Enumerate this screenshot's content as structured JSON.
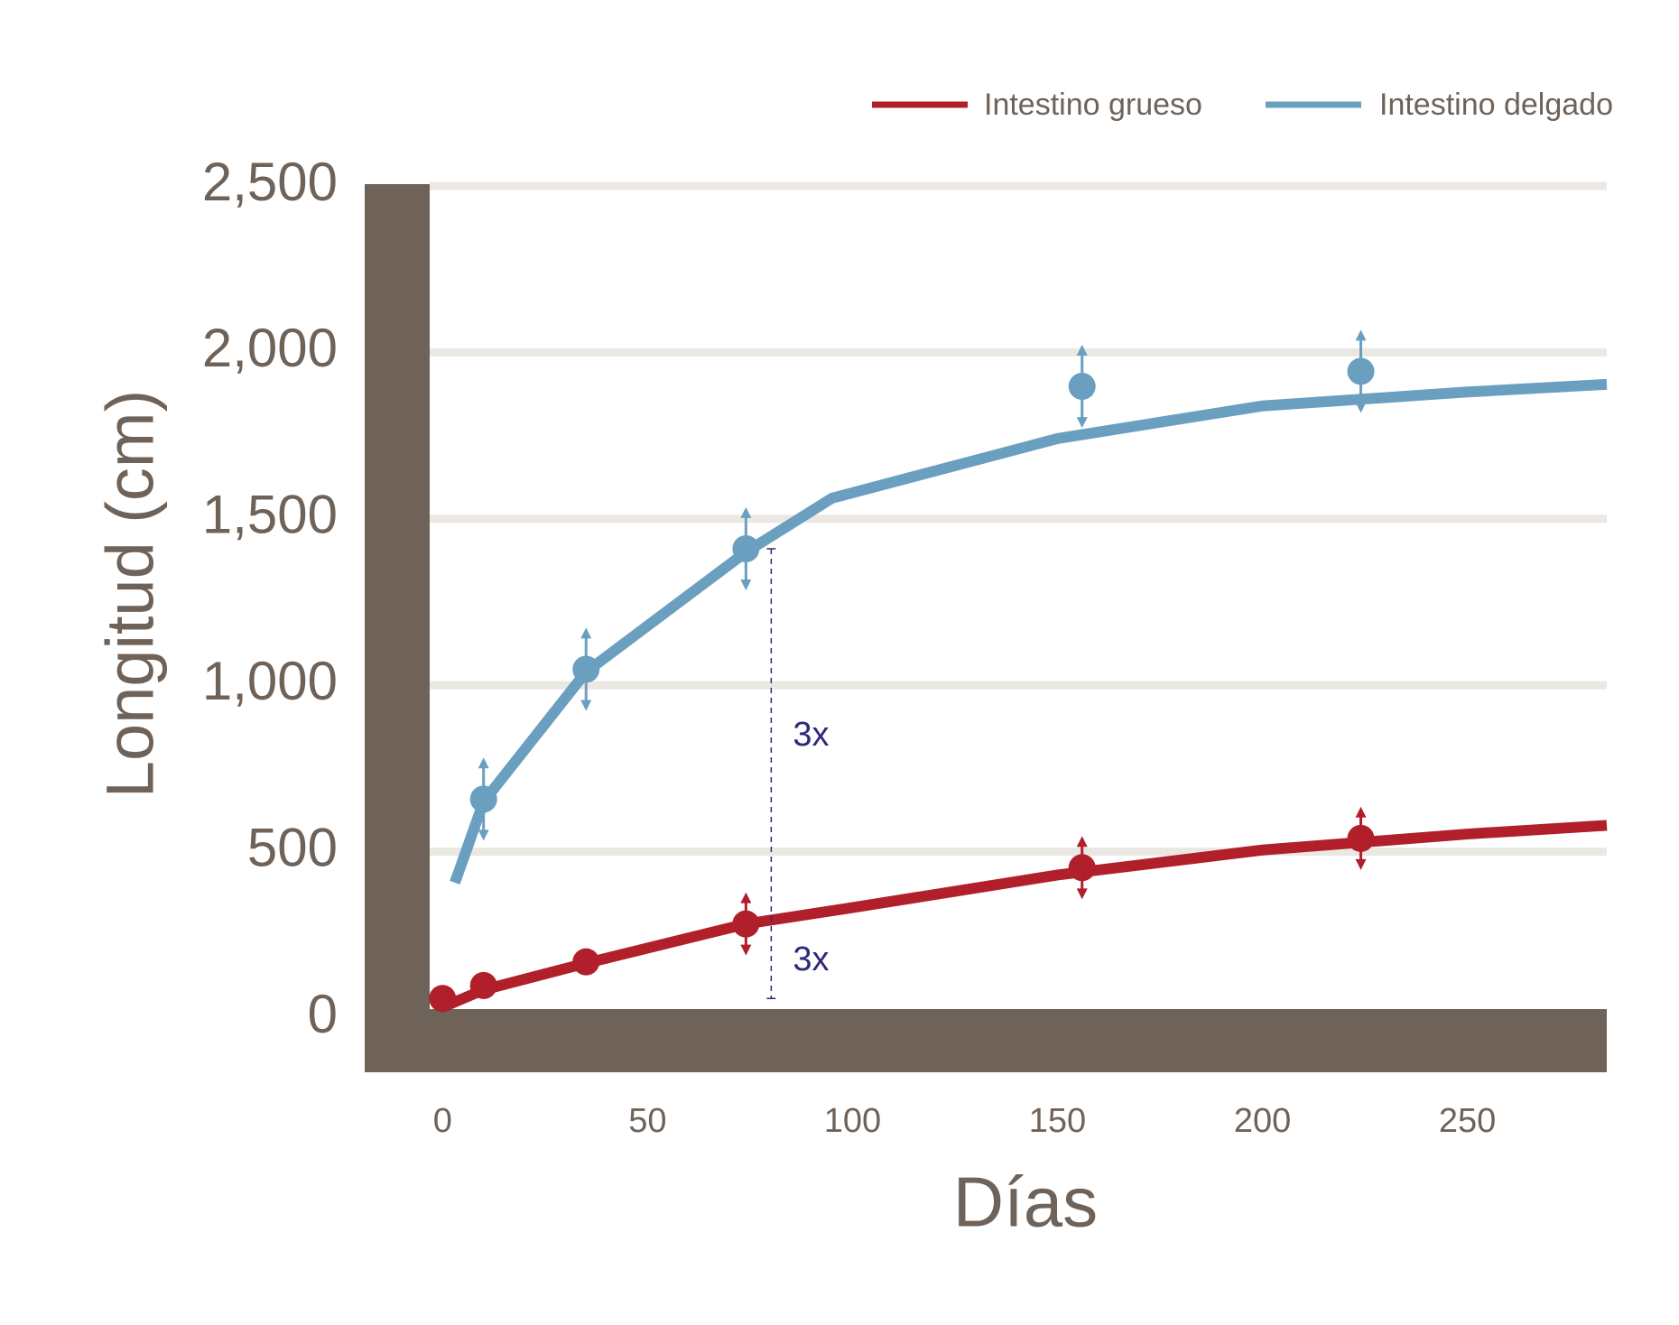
{
  "chart_data": {
    "type": "line",
    "xlabel": "Días",
    "ylabel": "Longitud (cm)",
    "xlim": [
      -19,
      284
    ],
    "ylim": [
      0,
      2500
    ],
    "xticks": [
      0,
      50,
      100,
      150,
      200,
      250
    ],
    "yticks": [
      0,
      500,
      {
        "value": 1000,
        "label": "1,000"
      },
      {
        "value": 1500,
        "label": "1,500"
      },
      {
        "value": 2000,
        "label": "2,000"
      },
      {
        "value": 2500,
        "label": "2,500"
      }
    ],
    "grid": true,
    "legend": "upper right",
    "series": [
      {
        "name": "Intestino grueso",
        "color": "#b01f2a",
        "x": [
          0,
          10,
          35,
          74,
          156,
          224
        ],
        "values": [
          59,
          98,
          169,
          283,
          452,
          540
        ],
        "errors": [
          null,
          null,
          null,
          95,
          95,
          95
        ],
        "fit_x": [
          0,
          10,
          35,
          74,
          100,
          150,
          200,
          250,
          284
        ],
        "fit_values": [
          33,
          85,
          165,
          283,
          332,
          430,
          505,
          553,
          579
        ]
      },
      {
        "name": "Intestino delgado",
        "color": "#6a9fc0",
        "x": [
          10,
          35,
          74,
          156,
          224
        ],
        "values": [
          658,
          1048,
          1410,
          1898,
          1943
        ],
        "errors": [
          125,
          125,
          125,
          125,
          125
        ],
        "fit_x": [
          3,
          10,
          35,
          74,
          95,
          150,
          200,
          250,
          284
        ],
        "fit_values": [
          407,
          650,
          1040,
          1400,
          1562,
          1741,
          1839,
          1881,
          1904
        ]
      }
    ],
    "annotations": [
      "3x",
      "3x"
    ]
  }
}
